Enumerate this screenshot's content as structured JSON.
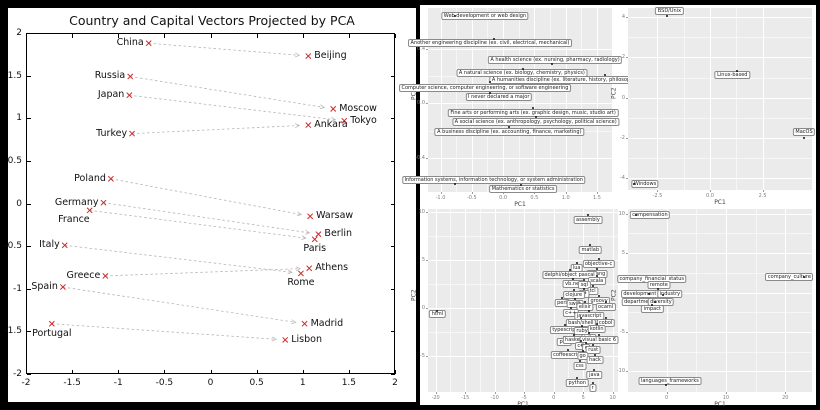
{
  "chart_data": [
    {
      "type": "scatter",
      "title": "Country and Capital Vectors Projected by PCA",
      "xlabel": "",
      "ylabel": "",
      "xlim": [
        -2,
        2
      ],
      "ylim": [
        -2,
        2
      ],
      "xticks": [
        -2,
        -1.5,
        -1,
        -0.5,
        0,
        0.5,
        1,
        1.5,
        2
      ],
      "xtick_labels": [
        "-2",
        "-1.5",
        "-1",
        "-0.5",
        "0",
        "0.5",
        "1",
        "1.5",
        "2"
      ],
      "yticks": [
        2,
        1.5,
        1,
        0.5,
        0,
        -0.5,
        -1,
        -1.5,
        -2
      ],
      "ytick_labels": [
        "2",
        "1.5",
        "1",
        "0.5",
        "0",
        "-0.5",
        "-1",
        "-1.5",
        "-2"
      ],
      "marker_color": "#cc2a2a",
      "arrow_color": "#b5b5b5",
      "pairs": [
        {
          "country": "China",
          "cx": -0.67,
          "cy": 1.88,
          "country_side": "left",
          "capital": "Beijing",
          "px": 1.06,
          "py": 1.73,
          "capital_side": "right"
        },
        {
          "country": "Russia",
          "cx": -0.87,
          "cy": 1.49,
          "country_side": "left",
          "capital": "Moscow",
          "px": 1.33,
          "py": 1.11,
          "capital_side": "right"
        },
        {
          "country": "Japan",
          "cx": -0.88,
          "cy": 1.27,
          "country_side": "left",
          "capital": "Tokyo",
          "px": 1.45,
          "py": 0.97,
          "capital_side": "right"
        },
        {
          "country": "Turkey",
          "cx": -0.85,
          "cy": 0.82,
          "country_side": "left",
          "capital": "Ankara",
          "px": 1.06,
          "py": 0.92,
          "capital_side": "right"
        },
        {
          "country": "Poland",
          "cx": -1.08,
          "cy": 0.29,
          "country_side": "left",
          "capital": "Warsaw",
          "px": 1.08,
          "py": -0.15,
          "capital_side": "right"
        },
        {
          "country": "Germany",
          "cx": -1.16,
          "cy": 0.01,
          "country_side": "left",
          "capital": "Berlin",
          "px": 1.17,
          "py": -0.36,
          "capital_side": "right"
        },
        {
          "country": "France",
          "cx": -1.31,
          "cy": -0.08,
          "country_side": "below-left",
          "capital": "Paris",
          "px": 1.13,
          "py": -0.42,
          "capital_side": "below"
        },
        {
          "country": "Italy",
          "cx": -1.58,
          "cy": -0.49,
          "country_side": "left",
          "capital": "Rome",
          "px": 0.98,
          "py": -0.82,
          "capital_side": "below"
        },
        {
          "country": "Greece",
          "cx": -1.14,
          "cy": -0.85,
          "country_side": "left",
          "capital": "Athens",
          "px": 1.07,
          "py": -0.76,
          "capital_side": "right"
        },
        {
          "country": "Spain",
          "cx": -1.6,
          "cy": -0.98,
          "country_side": "left",
          "capital": "Madrid",
          "px": 1.02,
          "py": -1.41,
          "capital_side": "right"
        },
        {
          "country": "Portugal",
          "cx": -1.72,
          "cy": -1.41,
          "country_side": "below",
          "capital": "Lisbon",
          "px": 0.81,
          "py": -1.6,
          "capital_side": "right"
        }
      ]
    },
    {
      "type": "scatter",
      "panel": "top-left",
      "xlabel": "PC1",
      "ylabel": "PC2",
      "xlim": [
        -1.2,
        1.74
      ],
      "ylim": [
        -0.65,
        0.7
      ],
      "xticks": [
        -1.0,
        -0.5,
        0.0,
        0.5,
        1.0,
        1.5
      ],
      "xtick_labels": [
        "-1.0",
        "-0.5",
        "0.0",
        "0.5",
        "1.0",
        "1.5"
      ],
      "yticks": [
        0.4,
        0.0,
        -0.4
      ],
      "ytick_labels": [
        "0.4",
        "0.0",
        "-0.4"
      ],
      "points": [
        {
          "label": "Web development or web design",
          "x": -0.29,
          "y": 0.64,
          "dot_at": [
            -0.77,
            0.64
          ]
        },
        {
          "label": "Another engineering discipline (ex. civil, electrical, mechanical)",
          "x": -0.21,
          "y": 0.44,
          "dot_at": [
            -0.15,
            0.47
          ]
        },
        {
          "label": "A health science (ex. nursing, pharmacy, radiology)",
          "x": 0.83,
          "y": 0.32,
          "dot_at": [
            0.78,
            0.29
          ]
        },
        {
          "label": "A natural science (ex. biology, chemistry, physics)",
          "x": 0.3,
          "y": 0.22,
          "dot_at": [
            0.32,
            0.25
          ]
        },
        {
          "label": "A humanities discipline (ex. literature, history, philosophy)",
          "x": 0.99,
          "y": 0.17,
          "dot_at": [
            1.63,
            0.21
          ]
        },
        {
          "label": "Computer science, computer engineering, or software engineering",
          "x": -0.29,
          "y": 0.115,
          "dot_at": [
            -0.21,
            0.16
          ]
        },
        {
          "label": "I never declared a major",
          "x": -0.07,
          "y": 0.047,
          "dot_at": [
            -0.21,
            0.08
          ]
        },
        {
          "label": "Fine arts or performing arts (ex. graphic design, music, studio art)",
          "x": 0.48,
          "y": -0.07
        },
        {
          "label": "A social science (ex. anthropology, psychology, political science)",
          "x": 0.52,
          "y": -0.14
        },
        {
          "label": "A business discipline (ex. accounting, finance, marketing)",
          "x": 0.1,
          "y": -0.21
        },
        {
          "label": "Information systems, information technology, or system administration",
          "x": -0.15,
          "y": -0.56,
          "dot_at": [
            -0.77,
            -0.59
          ]
        },
        {
          "label": "Mathematics or statistics",
          "x": 0.32,
          "y": -0.625,
          "dot_at": [
            0.29,
            -0.6
          ]
        }
      ]
    },
    {
      "type": "scatter",
      "panel": "top-right",
      "xlabel": "PC1",
      "ylabel": "PC2",
      "xlim": [
        -3.9,
        4.85
      ],
      "ylim": [
        -4.57,
        4.45
      ],
      "xticks": [
        -2.5,
        0.0,
        2.5
      ],
      "xtick_labels": [
        "-2.5",
        "0.0",
        "2.5"
      ],
      "yticks": [
        4,
        2,
        0,
        -2,
        -4
      ],
      "ytick_labels": [
        "4",
        "2",
        "0",
        "-2",
        "-4"
      ],
      "points": [
        {
          "label": "BSD/Unix",
          "x": -1.93,
          "y": 4.31,
          "dot_at": [
            -2.06,
            4.04
          ]
        },
        {
          "label": "Linux-based",
          "x": 1.06,
          "y": 1.12,
          "dot_at": [
            1.27,
            1.34
          ]
        },
        {
          "label": "MacOS",
          "x": 4.47,
          "y": -1.71,
          "dot_at": [
            4.47,
            -1.98
          ]
        },
        {
          "label": "Windows",
          "x": -3.09,
          "y": -4.29,
          "dot_at": [
            -3.6,
            -4.29
          ]
        }
      ]
    },
    {
      "type": "scatter",
      "panel": "bottom-left",
      "xlabel": "PC1",
      "ylabel": "PC2",
      "xlim": [
        -21.3,
        10.9
      ],
      "ylim": [
        -8.7,
        10.3
      ],
      "xticks": [
        -20,
        -15,
        -10,
        -5,
        0,
        5,
        10
      ],
      "xtick_labels": [
        "-20",
        "-15",
        "-10",
        "-5",
        "0",
        "5",
        "10"
      ],
      "yticks": [
        10,
        5,
        0,
        -5
      ],
      "ytick_labels": [
        "10",
        "5",
        "0",
        "-5"
      ],
      "points": [
        {
          "label": "assembly",
          "x": 5.8,
          "y": 9.2
        },
        {
          "label": "matlab",
          "x": 6.2,
          "y": 6.0
        },
        {
          "label": "objective-c",
          "x": 7.6,
          "y": 4.6
        },
        {
          "label": "lua",
          "x": 3.9,
          "y": 4.2
        },
        {
          "label": "erlang",
          "x": 7.4,
          "y": 3.5
        },
        {
          "label": "delphi/object pascal",
          "x": 2.7,
          "y": 3.4
        },
        {
          "label": "scala",
          "x": 7.3,
          "y": 2.8
        },
        {
          "label": "vb.net",
          "x": 3.3,
          "y": 2.5
        },
        {
          "label": "sql",
          "x": 5.2,
          "y": 2.4
        },
        {
          "label": "tcl",
          "x": 6.6,
          "y": 1.8
        },
        {
          "label": "f#",
          "x": 5.1,
          "y": 1.5
        },
        {
          "label": "clojure",
          "x": 3.4,
          "y": 1.4
        },
        {
          "label": "groovy",
          "x": 7.7,
          "y": 0.8
        },
        {
          "label": "perl",
          "x": 1.4,
          "y": 0.5
        },
        {
          "label": "swift",
          "x": 3.6,
          "y": 0.45
        },
        {
          "label": "elixir",
          "x": 5.3,
          "y": 0.1
        },
        {
          "label": "ocaml",
          "x": 8.8,
          "y": 0.1
        },
        {
          "label": "c++",
          "x": 2.9,
          "y": -0.5
        },
        {
          "label": "html",
          "x": -19.7,
          "y": -0.6,
          "dot_at": [
            -19.7,
            -0.3
          ]
        },
        {
          "label": "javascript",
          "x": 6.0,
          "y": -0.8
        },
        {
          "label": "bash/shell",
          "x": 4.6,
          "y": -1.5
        },
        {
          "label": "cobol",
          "x": 8.8,
          "y": -1.5
        },
        {
          "label": "typescript",
          "x": 1.9,
          "y": -2.3
        },
        {
          "label": "ruby",
          "x": 4.8,
          "y": -2.4
        },
        {
          "label": "kotlin",
          "x": 7.3,
          "y": -2.2
        },
        {
          "label": "php",
          "x": 1.8,
          "y": -3.5
        },
        {
          "label": "haskell",
          "x": 3.4,
          "y": -3.3
        },
        {
          "label": "julia",
          "x": 6.0,
          "y": -3.1
        },
        {
          "label": "visual basic 6",
          "x": 7.7,
          "y": -3.3
        },
        {
          "label": "c#",
          "x": 4.6,
          "y": -3.9
        },
        {
          "label": "c",
          "x": 5.5,
          "y": -4.1
        },
        {
          "label": "rust",
          "x": 6.7,
          "y": -4.3
        },
        {
          "label": "coffeescript",
          "x": 2.4,
          "y": -4.9
        },
        {
          "label": "go",
          "x": 4.9,
          "y": -5.0
        },
        {
          "label": "hack",
          "x": 7.0,
          "y": -5.4
        },
        {
          "label": "css",
          "x": 4.4,
          "y": -6.0
        },
        {
          "label": "java",
          "x": 6.9,
          "y": -6.9
        },
        {
          "label": "python",
          "x": 4.0,
          "y": -7.8
        },
        {
          "label": "r",
          "x": 6.6,
          "y": -8.3
        }
      ]
    },
    {
      "type": "scatter",
      "panel": "bottom-right",
      "xlabel": "PC1",
      "ylabel": "PC2",
      "xlim": [
        -6.5,
        24.5
      ],
      "ylim": [
        -12.6,
        10.6
      ],
      "xticks": [
        0,
        10,
        20
      ],
      "xtick_labels": [
        "0",
        "10",
        "20"
      ],
      "yticks": [
        10,
        5,
        0,
        -5,
        -10
      ],
      "ytick_labels": [
        "10",
        "5",
        "0",
        "-5",
        "-10"
      ],
      "points": [
        {
          "label": "compensation",
          "x": -2.8,
          "y": 9.9,
          "dot_at": [
            -5.2,
            9.9
          ]
        },
        {
          "label": "company_financial_status",
          "x": -2.5,
          "y": 1.7,
          "dot_at": [
            -2.4,
            0.85
          ]
        },
        {
          "label": "remote",
          "x": -1.3,
          "y": 0.98,
          "dot_at": [
            -1.5,
            0.5
          ]
        },
        {
          "label": "development",
          "x": -4.5,
          "y": -0.16,
          "dot_at": [
            -2.9,
            -0.16
          ]
        },
        {
          "label": "industry",
          "x": 0.56,
          "y": -0.2,
          "dot_at": [
            -0.67,
            -0.3
          ]
        },
        {
          "label": "department",
          "x": -4.67,
          "y": -1.14,
          "dot_at": [
            -2.2,
            -1.14
          ]
        },
        {
          "label": "diversity",
          "x": -0.96,
          "y": -1.22,
          "dot_at": [
            -2.0,
            -1.2
          ]
        },
        {
          "label": "impact",
          "x": -2.4,
          "y": -2.1,
          "dot_at": [
            -2.4,
            -1.56
          ]
        },
        {
          "label": "company_culture",
          "x": 20.7,
          "y": 2.0,
          "dot_at": [
            23.2,
            2.0
          ]
        },
        {
          "label": "languages_frameworks",
          "x": 0.56,
          "y": -11.2,
          "dot_at": [
            -0.17,
            -11.7
          ]
        }
      ]
    }
  ]
}
